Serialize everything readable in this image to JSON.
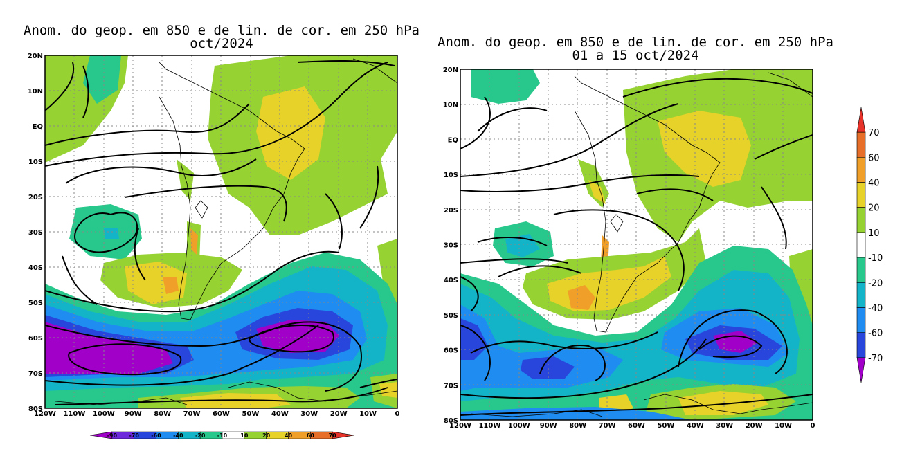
{
  "left_map": {
    "title_line1": "Anom. do geop. em 850 e de lin. de cor. em 250 hPa",
    "title_line2": "oct/2024",
    "lat_labels": [
      "20N",
      "10N",
      "EQ",
      "10S",
      "20S",
      "30S",
      "40S",
      "50S",
      "60S",
      "70S",
      "80S"
    ],
    "lon_labels": [
      "120W",
      "110W",
      "100W",
      "90W",
      "80W",
      "70W",
      "60W",
      "50W",
      "40W",
      "30W",
      "20W",
      "10W",
      "0"
    ],
    "colorbar": {
      "orientation": "horizontal",
      "labels": [
        "-90",
        "-70",
        "-60",
        "-40",
        "-20",
        "-10",
        "10",
        "20",
        "40",
        "60",
        "70"
      ],
      "colors": [
        "#a000c8",
        "#6e28dc",
        "#2846dc",
        "#1e8cf0",
        "#14b4c8",
        "#28c88c",
        "#ffffff",
        "#96d232",
        "#e6d228",
        "#f0a028",
        "#e66e28",
        "#e63228"
      ]
    }
  },
  "right_map": {
    "title_line1": "Anom. do geop. em 850 e de lin. de cor. em 250 hPa",
    "title_line2": "01 a 15 oct/2024",
    "lat_labels": [
      "20N",
      "10N",
      "EQ",
      "10S",
      "20S",
      "30S",
      "40S",
      "50S",
      "60S",
      "70S",
      "80S"
    ],
    "lon_labels": [
      "120W",
      "110W",
      "100W",
      "90W",
      "80W",
      "70W",
      "60W",
      "50W",
      "40W",
      "30W",
      "20W",
      "10W",
      "0"
    ],
    "colorbar": {
      "orientation": "vertical",
      "labels": [
        "70",
        "60",
        "40",
        "20",
        "10",
        "-10",
        "-20",
        "-40",
        "-60",
        "-70"
      ],
      "colors": [
        "#e63228",
        "#e66e28",
        "#f0a028",
        "#e6d228",
        "#96d232",
        "#ffffff",
        "#28c88c",
        "#14b4c8",
        "#1e8cf0",
        "#2846dc",
        "#a000c8"
      ]
    }
  },
  "palette": {
    "g10": "#96d232",
    "y20": "#e6d228",
    "o40": "#f0a028",
    "t10": "#28c88c",
    "c20": "#14b4c8",
    "b40": "#1e8cf0",
    "d60": "#2846dc",
    "p70": "#a000c8"
  }
}
